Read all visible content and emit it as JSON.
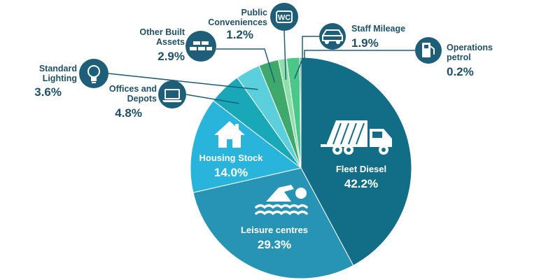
{
  "chart_data": {
    "type": "pie",
    "title": "",
    "slices": [
      {
        "label": "Fleet Diesel",
        "value": 42.2,
        "value_label": "42.2%",
        "color": "#126e87",
        "icon": "refuse-truck-icon"
      },
      {
        "label": "Leisure centres",
        "value": 29.3,
        "value_label": "29.3%",
        "color": "#2794b6",
        "icon": "swimmer-icon"
      },
      {
        "label": "Housing Stock",
        "value": 14.0,
        "value_label": "14.0%",
        "color": "#29b4dc",
        "icon": "house-icon"
      },
      {
        "label": "Offices and Depots",
        "value": 4.8,
        "value_label": "4.8%",
        "color": "#18a8b8",
        "icon": "laptop-icon"
      },
      {
        "label": "Standard Lighting",
        "value": 3.6,
        "value_label": "3.6%",
        "color": "#5bcfdc",
        "icon": "lightbulb-icon"
      },
      {
        "label": "Other Built Assets",
        "value": 2.9,
        "value_label": "2.9%",
        "color": "#3ea96a",
        "icon": "bricks-icon"
      },
      {
        "label": "Public Conveniences",
        "value": 1.2,
        "value_label": "1.2%",
        "color": "#8ee0a8",
        "icon": "wc-icon",
        "icon_text": "WC"
      },
      {
        "label": "Staff Mileage",
        "value": 1.9,
        "value_label": "1.9%",
        "color": "#4cc78a",
        "icon": "car-icon"
      },
      {
        "label": "Operations petrol",
        "value": 0.2,
        "value_label": "0.2%",
        "color": "#2f8f55",
        "icon": "fuel-pump-icon"
      }
    ],
    "label_lines": {
      "Staff Mileage": [
        "Staff Mileage"
      ],
      "Operations petrol": [
        "Operations",
        "petrol"
      ],
      "Public Conveniences": [
        "Public",
        "Conveniences"
      ],
      "Other Built Assets": [
        "Other Built",
        "Assets"
      ],
      "Standard Lighting": [
        "Standard",
        "Lighting"
      ],
      "Offices and Depots": [
        "Offices and",
        "Depots"
      ]
    },
    "legend": "none"
  },
  "colors": {
    "label_text": "#1f5068",
    "icon_circle": "#1e5e78",
    "leader_line": "#1e5e78"
  }
}
